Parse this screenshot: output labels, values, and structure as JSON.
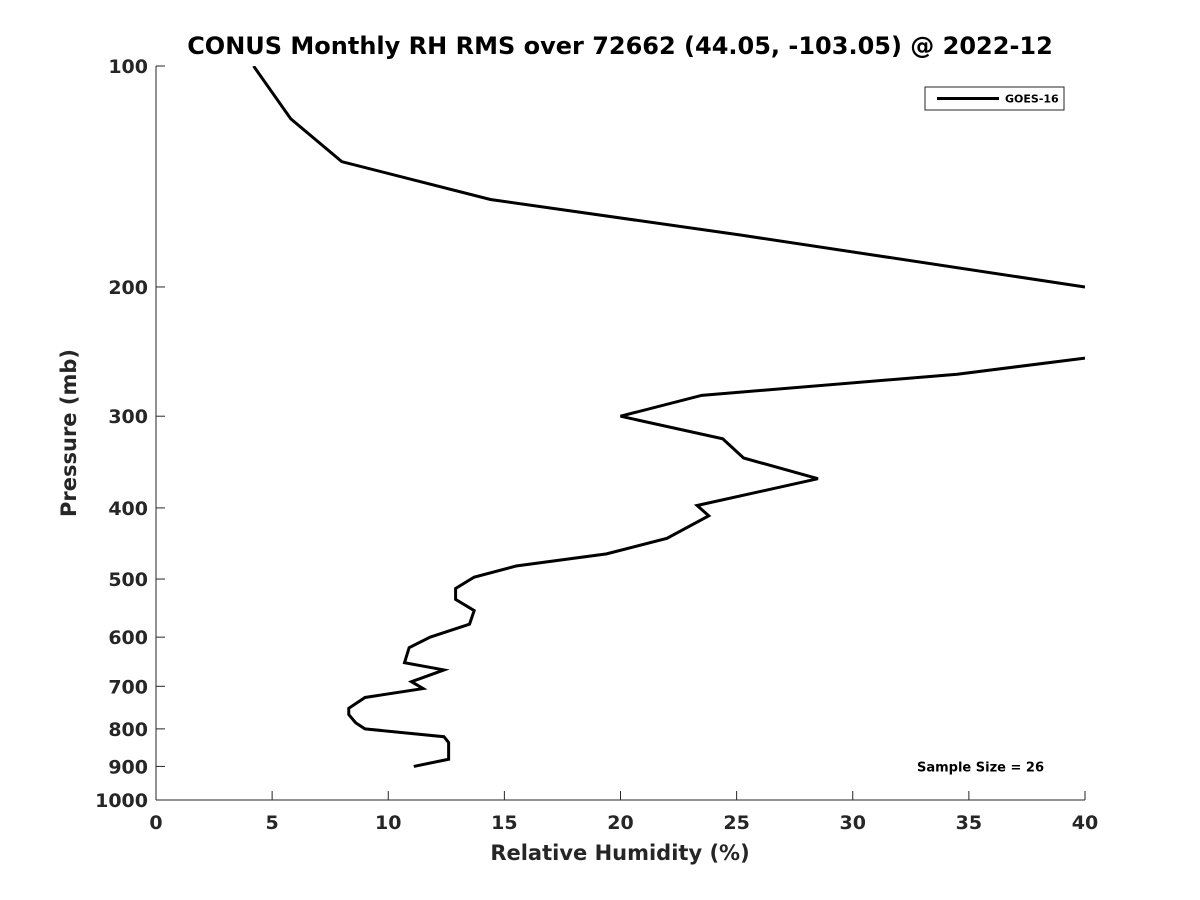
{
  "chart_data": {
    "type": "line",
    "title": "CONUS Monthly RH RMS over 72662 (44.05, -103.05) @ 2022-12",
    "xlabel": "Relative Humidity (%)",
    "ylabel": "Pressure (mb)",
    "xlim": [
      0,
      40
    ],
    "ylim": [
      1000,
      100
    ],
    "yscale": "log",
    "y_reversed": true,
    "x_ticks": [
      0,
      5,
      10,
      15,
      20,
      25,
      30,
      35,
      40
    ],
    "x_tick_labels": [
      "0",
      "5",
      "10",
      "15",
      "20",
      "25",
      "30",
      "35",
      "40"
    ],
    "y_ticks": [
      100,
      200,
      300,
      400,
      500,
      600,
      700,
      800,
      900,
      1000
    ],
    "y_tick_labels": [
      "100",
      "200",
      "300",
      "400",
      "500",
      "600",
      "700",
      "800",
      "900",
      "1000"
    ],
    "grid": false,
    "legend_position": "top-right",
    "series": [
      {
        "name": "GOES-16",
        "color": "#000000",
        "segments": [
          {
            "points": [
              [
                4.2,
                100
              ],
              [
                5.8,
                118
              ],
              [
                8.0,
                135
              ],
              [
                14.4,
                152
              ],
              [
                25.2,
                170
              ],
              [
                40.0,
                200
              ]
            ]
          },
          {
            "points": [
              [
                40.0,
                250
              ],
              [
                34.5,
                263
              ],
              [
                23.5,
                281
              ],
              [
                20.0,
                300
              ],
              [
                24.4,
                322
              ],
              [
                25.3,
                342
              ],
              [
                28.5,
                365
              ],
              [
                23.3,
                397
              ],
              [
                23.8,
                410
              ],
              [
                22.0,
                440
              ],
              [
                19.4,
                462
              ],
              [
                15.5,
                480
              ],
              [
                13.7,
                497
              ],
              [
                12.9,
                515
              ],
              [
                12.9,
                533
              ],
              [
                13.7,
                552
              ],
              [
                13.5,
                576
              ],
              [
                11.8,
                600
              ],
              [
                10.9,
                620
              ],
              [
                10.7,
                650
              ],
              [
                12.4,
                665
              ],
              [
                11.0,
                690
              ],
              [
                11.5,
                705
              ],
              [
                9.0,
                725
              ],
              [
                8.3,
                750
              ],
              [
                8.3,
                765
              ],
              [
                8.6,
                785
              ],
              [
                9.0,
                800
              ],
              [
                12.4,
                820
              ],
              [
                12.6,
                835
              ],
              [
                12.6,
                880
              ],
              [
                11.1,
                900
              ]
            ]
          }
        ]
      }
    ],
    "annotations": [
      {
        "text": "Sample Size = 26",
        "x": 35.5,
        "y": 900
      }
    ]
  }
}
